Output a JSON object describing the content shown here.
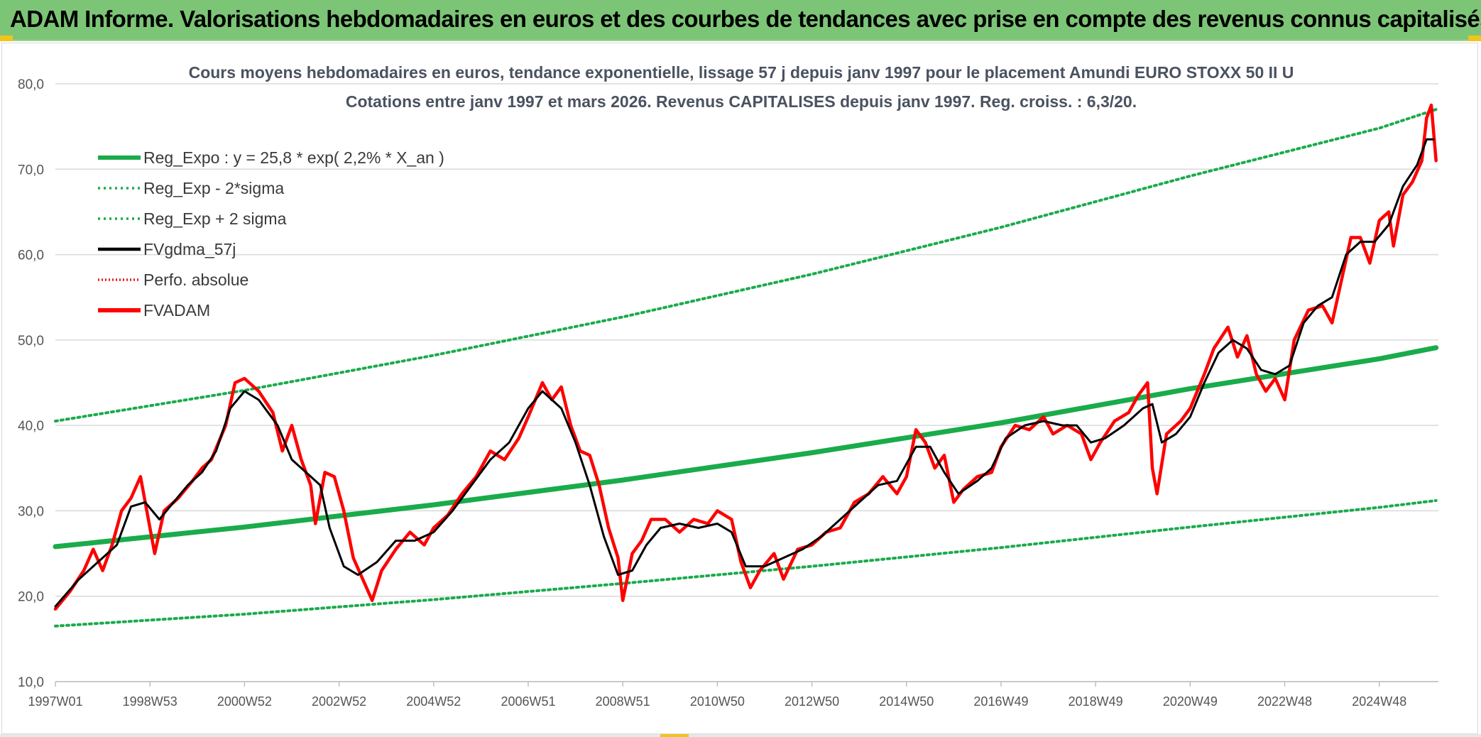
{
  "banner": {
    "title": "ADAM Informe. Valorisations hebdomadaires en euros et des courbes de tendances avec prise en compte des revenus connus capitalisés"
  },
  "chart_data": {
    "type": "line",
    "title": "Cours moyens hebdomadaires en euros, tendance exponentielle, lissage 57 j depuis janv 1997 pour le placement Amundi EURO STOXX 50 II U",
    "subtitle": "Cotations entre janv 1997 et mars 2026. Revenus CAPITALISES depuis janv 1997. Reg. croiss. : 6,3/20.",
    "xlabel": "",
    "ylabel": "",
    "x_range": [
      "1997W01",
      "2026W12"
    ],
    "ylim": [
      10,
      80
    ],
    "y_ticks": [
      "10,0",
      "20,0",
      "30,0",
      "40,0",
      "50,0",
      "60,0",
      "70,0",
      "80,0"
    ],
    "x_ticks": [
      {
        "label": "1997W01",
        "t": 1997.0
      },
      {
        "label": "1998W53",
        "t": 1999.0
      },
      {
        "label": "2000W52",
        "t": 2001.0
      },
      {
        "label": "2002W52",
        "t": 2003.0
      },
      {
        "label": "2004W52",
        "t": 2005.0
      },
      {
        "label": "2006W51",
        "t": 2007.0
      },
      {
        "label": "2008W51",
        "t": 2009.0
      },
      {
        "label": "2010W50",
        "t": 2011.0
      },
      {
        "label": "2012W50",
        "t": 2013.0
      },
      {
        "label": "2014W50",
        "t": 2015.0
      },
      {
        "label": "2016W49",
        "t": 2017.0
      },
      {
        "label": "2018W49",
        "t": 2019.0
      },
      {
        "label": "2020W49",
        "t": 2021.0
      },
      {
        "label": "2022W48",
        "t": 2023.0
      },
      {
        "label": "2024W48",
        "t": 2025.0
      }
    ],
    "grid": true,
    "legend_position": "top-left",
    "series": [
      {
        "name": "Reg_Expo : y = 25,8 * exp( 2,2% *  X_an )",
        "color": "#1aab4b",
        "style": "solid-thick",
        "points": [
          [
            1997.0,
            25.8
          ],
          [
            2001.0,
            28.1
          ],
          [
            2005.0,
            30.7
          ],
          [
            2009.0,
            33.6
          ],
          [
            2013.0,
            36.8
          ],
          [
            2017.0,
            40.3
          ],
          [
            2021.0,
            44.3
          ],
          [
            2025.0,
            47.8
          ],
          [
            2026.2,
            49.1
          ]
        ]
      },
      {
        "name": "Reg_Exp - 2*sigma",
        "color": "#1aab4b",
        "style": "dotted",
        "points": [
          [
            1997.0,
            16.5
          ],
          [
            2001.0,
            17.9
          ],
          [
            2005.0,
            19.6
          ],
          [
            2009.0,
            21.5
          ],
          [
            2013.0,
            23.5
          ],
          [
            2017.0,
            25.7
          ],
          [
            2021.0,
            28.1
          ],
          [
            2025.0,
            30.4
          ],
          [
            2026.2,
            31.2
          ]
        ]
      },
      {
        "name": "Reg_Exp + 2 sigma",
        "color": "#1aab4b",
        "style": "dotted",
        "points": [
          [
            1997.0,
            40.5
          ],
          [
            2001.0,
            44.1
          ],
          [
            2005.0,
            48.2
          ],
          [
            2009.0,
            52.7
          ],
          [
            2013.0,
            57.7
          ],
          [
            2017.0,
            63.2
          ],
          [
            2021.0,
            69.2
          ],
          [
            2025.0,
            74.8
          ],
          [
            2026.2,
            77.0
          ]
        ]
      },
      {
        "name": "FVgdma_57j",
        "color": "#000000",
        "style": "solid",
        "points": [
          [
            1997.0,
            18.8
          ],
          [
            1997.5,
            22.0
          ],
          [
            1998.0,
            24.5
          ],
          [
            1998.3,
            26.0
          ],
          [
            1998.6,
            30.5
          ],
          [
            1998.9,
            31.0
          ],
          [
            1999.2,
            29.0
          ],
          [
            1999.5,
            31.0
          ],
          [
            1999.8,
            33.0
          ],
          [
            2000.1,
            34.5
          ],
          [
            2000.4,
            37.0
          ],
          [
            2000.7,
            42.0
          ],
          [
            2001.0,
            44.0
          ],
          [
            2001.3,
            43.0
          ],
          [
            2001.7,
            40.0
          ],
          [
            2002.0,
            36.0
          ],
          [
            2002.3,
            34.5
          ],
          [
            2002.6,
            33.0
          ],
          [
            2002.8,
            28.0
          ],
          [
            2003.1,
            23.5
          ],
          [
            2003.4,
            22.5
          ],
          [
            2003.8,
            24.0
          ],
          [
            2004.2,
            26.5
          ],
          [
            2004.6,
            26.5
          ],
          [
            2005.0,
            27.5
          ],
          [
            2005.4,
            30.0
          ],
          [
            2005.8,
            33.0
          ],
          [
            2006.2,
            36.0
          ],
          [
            2006.6,
            38.0
          ],
          [
            2007.0,
            42.0
          ],
          [
            2007.3,
            44.0
          ],
          [
            2007.7,
            42.0
          ],
          [
            2008.0,
            38.0
          ],
          [
            2008.3,
            33.0
          ],
          [
            2008.6,
            27.0
          ],
          [
            2008.9,
            22.5
          ],
          [
            2009.2,
            23.0
          ],
          [
            2009.5,
            26.0
          ],
          [
            2009.8,
            28.0
          ],
          [
            2010.2,
            28.5
          ],
          [
            2010.6,
            28.0
          ],
          [
            2011.0,
            28.5
          ],
          [
            2011.3,
            27.5
          ],
          [
            2011.6,
            23.5
          ],
          [
            2012.0,
            23.5
          ],
          [
            2012.4,
            24.5
          ],
          [
            2012.8,
            25.5
          ],
          [
            2013.2,
            27.0
          ],
          [
            2013.6,
            29.0
          ],
          [
            2014.0,
            31.0
          ],
          [
            2014.4,
            33.0
          ],
          [
            2014.8,
            33.5
          ],
          [
            2015.2,
            37.5
          ],
          [
            2015.5,
            37.5
          ],
          [
            2015.8,
            34.5
          ],
          [
            2016.1,
            32.0
          ],
          [
            2016.5,
            33.5
          ],
          [
            2016.8,
            35.0
          ],
          [
            2017.1,
            38.5
          ],
          [
            2017.5,
            40.0
          ],
          [
            2017.9,
            40.5
          ],
          [
            2018.3,
            40.0
          ],
          [
            2018.6,
            40.0
          ],
          [
            2018.9,
            38.0
          ],
          [
            2019.2,
            38.5
          ],
          [
            2019.6,
            40.0
          ],
          [
            2020.0,
            42.0
          ],
          [
            2020.2,
            42.5
          ],
          [
            2020.4,
            38.0
          ],
          [
            2020.7,
            39.0
          ],
          [
            2021.0,
            41.0
          ],
          [
            2021.3,
            45.0
          ],
          [
            2021.6,
            48.5
          ],
          [
            2021.9,
            50.0
          ],
          [
            2022.2,
            49.0
          ],
          [
            2022.5,
            46.5
          ],
          [
            2022.8,
            46.0
          ],
          [
            2023.1,
            47.0
          ],
          [
            2023.4,
            52.0
          ],
          [
            2023.7,
            54.0
          ],
          [
            2024.0,
            55.0
          ],
          [
            2024.3,
            60.0
          ],
          [
            2024.6,
            61.5
          ],
          [
            2024.9,
            61.5
          ],
          [
            2025.2,
            63.5
          ],
          [
            2025.5,
            68.0
          ],
          [
            2025.8,
            70.5
          ],
          [
            2026.0,
            73.5
          ],
          [
            2026.15,
            73.5
          ]
        ]
      },
      {
        "name": "Perfo. absolue",
        "color": "#e02020",
        "style": "dotted",
        "points": []
      },
      {
        "name": "FVADAM",
        "color": "#ff0000",
        "style": "solid-thick",
        "points": [
          [
            1997.0,
            18.5
          ],
          [
            1997.3,
            20.5
          ],
          [
            1997.6,
            23.0
          ],
          [
            1997.8,
            25.5
          ],
          [
            1998.0,
            23.0
          ],
          [
            1998.2,
            26.0
          ],
          [
            1998.4,
            30.0
          ],
          [
            1998.6,
            31.5
          ],
          [
            1998.8,
            34.0
          ],
          [
            1999.0,
            28.0
          ],
          [
            1999.1,
            25.0
          ],
          [
            1999.3,
            30.0
          ],
          [
            1999.6,
            31.5
          ],
          [
            1999.9,
            33.5
          ],
          [
            2000.1,
            35.0
          ],
          [
            2000.3,
            36.0
          ],
          [
            2000.6,
            40.0
          ],
          [
            2000.8,
            45.0
          ],
          [
            2001.0,
            45.5
          ],
          [
            2001.3,
            44.0
          ],
          [
            2001.6,
            41.5
          ],
          [
            2001.8,
            37.0
          ],
          [
            2002.0,
            40.0
          ],
          [
            2002.2,
            36.0
          ],
          [
            2002.4,
            33.0
          ],
          [
            2002.5,
            28.5
          ],
          [
            2002.7,
            34.5
          ],
          [
            2002.9,
            34.0
          ],
          [
            2003.1,
            30.0
          ],
          [
            2003.3,
            24.5
          ],
          [
            2003.5,
            22.0
          ],
          [
            2003.7,
            19.5
          ],
          [
            2003.9,
            23.0
          ],
          [
            2004.2,
            25.5
          ],
          [
            2004.5,
            27.5
          ],
          [
            2004.8,
            26.0
          ],
          [
            2005.0,
            28.0
          ],
          [
            2005.3,
            29.5
          ],
          [
            2005.6,
            32.0
          ],
          [
            2005.9,
            34.0
          ],
          [
            2006.2,
            37.0
          ],
          [
            2006.5,
            36.0
          ],
          [
            2006.8,
            38.5
          ],
          [
            2007.0,
            41.0
          ],
          [
            2007.3,
            45.0
          ],
          [
            2007.5,
            43.0
          ],
          [
            2007.7,
            44.5
          ],
          [
            2007.9,
            40.0
          ],
          [
            2008.1,
            37.0
          ],
          [
            2008.3,
            36.5
          ],
          [
            2008.5,
            33.0
          ],
          [
            2008.7,
            28.0
          ],
          [
            2008.9,
            24.5
          ],
          [
            2009.0,
            19.5
          ],
          [
            2009.2,
            25.0
          ],
          [
            2009.4,
            26.5
          ],
          [
            2009.6,
            29.0
          ],
          [
            2009.9,
            29.0
          ],
          [
            2010.2,
            27.5
          ],
          [
            2010.5,
            29.0
          ],
          [
            2010.8,
            28.5
          ],
          [
            2011.0,
            30.0
          ],
          [
            2011.3,
            29.0
          ],
          [
            2011.5,
            24.0
          ],
          [
            2011.7,
            21.0
          ],
          [
            2011.9,
            23.0
          ],
          [
            2012.2,
            25.0
          ],
          [
            2012.4,
            22.0
          ],
          [
            2012.7,
            25.5
          ],
          [
            2013.0,
            26.0
          ],
          [
            2013.3,
            27.5
          ],
          [
            2013.6,
            28.0
          ],
          [
            2013.9,
            31.0
          ],
          [
            2014.2,
            32.0
          ],
          [
            2014.5,
            34.0
          ],
          [
            2014.8,
            32.0
          ],
          [
            2015.0,
            34.0
          ],
          [
            2015.2,
            39.5
          ],
          [
            2015.4,
            38.0
          ],
          [
            2015.6,
            35.0
          ],
          [
            2015.8,
            36.5
          ],
          [
            2016.0,
            31.0
          ],
          [
            2016.2,
            32.5
          ],
          [
            2016.5,
            34.0
          ],
          [
            2016.8,
            34.5
          ],
          [
            2017.0,
            37.5
          ],
          [
            2017.3,
            40.0
          ],
          [
            2017.6,
            39.5
          ],
          [
            2017.9,
            41.0
          ],
          [
            2018.1,
            39.0
          ],
          [
            2018.4,
            40.0
          ],
          [
            2018.7,
            39.0
          ],
          [
            2018.9,
            36.0
          ],
          [
            2019.1,
            38.0
          ],
          [
            2019.4,
            40.5
          ],
          [
            2019.7,
            41.5
          ],
          [
            2019.9,
            43.5
          ],
          [
            2020.1,
            45.0
          ],
          [
            2020.2,
            35.0
          ],
          [
            2020.3,
            32.0
          ],
          [
            2020.5,
            39.0
          ],
          [
            2020.8,
            40.5
          ],
          [
            2021.0,
            42.0
          ],
          [
            2021.3,
            46.0
          ],
          [
            2021.5,
            49.0
          ],
          [
            2021.8,
            51.5
          ],
          [
            2022.0,
            48.0
          ],
          [
            2022.2,
            50.5
          ],
          [
            2022.4,
            46.0
          ],
          [
            2022.6,
            44.0
          ],
          [
            2022.8,
            45.5
          ],
          [
            2023.0,
            43.0
          ],
          [
            2023.2,
            50.0
          ],
          [
            2023.5,
            53.5
          ],
          [
            2023.8,
            54.0
          ],
          [
            2024.0,
            52.0
          ],
          [
            2024.2,
            57.0
          ],
          [
            2024.4,
            62.0
          ],
          [
            2024.6,
            62.0
          ],
          [
            2024.8,
            59.0
          ],
          [
            2025.0,
            64.0
          ],
          [
            2025.2,
            65.0
          ],
          [
            2025.3,
            61.0
          ],
          [
            2025.5,
            67.0
          ],
          [
            2025.7,
            68.5
          ],
          [
            2025.9,
            71.0
          ],
          [
            2026.0,
            76.0
          ],
          [
            2026.1,
            77.5
          ],
          [
            2026.2,
            71.0
          ]
        ]
      }
    ]
  }
}
